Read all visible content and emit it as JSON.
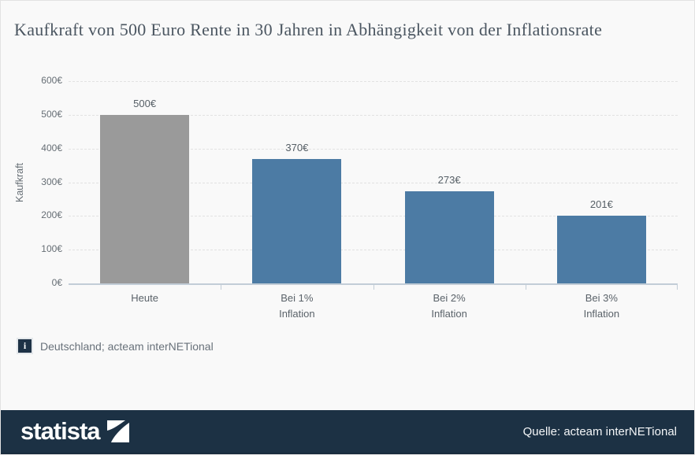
{
  "page": {
    "title": "Kaufkraft von 500 Euro Rente in 30 Jahren in Abhängigkeit von der Inflationsrate"
  },
  "chart_data": {
    "type": "bar",
    "title": "Kaufkraft von 500 Euro Rente in 30 Jahren in Abhängigkeit von der Inflationsrate",
    "categories": [
      "Heute",
      "Bei 1%\nInflation",
      "Bei 2%\nInflation",
      "Bei 3%\nInflation"
    ],
    "values": [
      500,
      370,
      273,
      201
    ],
    "value_labels": [
      "500€",
      "370€",
      "273€",
      "201€"
    ],
    "xlabel": "",
    "ylabel": "Kaufkraft",
    "ylim": [
      0,
      600
    ],
    "ytick_interval": 100,
    "ytick_labels": [
      "0€",
      "100€",
      "200€",
      "300€",
      "400€",
      "500€",
      "600€"
    ],
    "grid": "horizontal-dashed",
    "legend": "none",
    "bar_colors": [
      "#9a9a9a",
      "#4c7ba4",
      "#4c7ba4",
      "#4c7ba4"
    ]
  },
  "footnote": {
    "icon": "info-icon",
    "text": "Deutschland; acteam interNETional"
  },
  "footer_bar": {
    "logo_text": "statista",
    "logo_icon": "statista-swoosh-icon",
    "source": "Quelle: acteam interNETional",
    "background": "#1c3144"
  },
  "colors": {
    "page_background": "#f9f9f9",
    "title_text": "#4b5661",
    "bar_gray": "#9a9a9a",
    "bar_blue": "#4c7ba4",
    "axis_line": "#c2cdd7",
    "gridline": "#e2e2e2",
    "footer_navy": "#1c3144"
  }
}
